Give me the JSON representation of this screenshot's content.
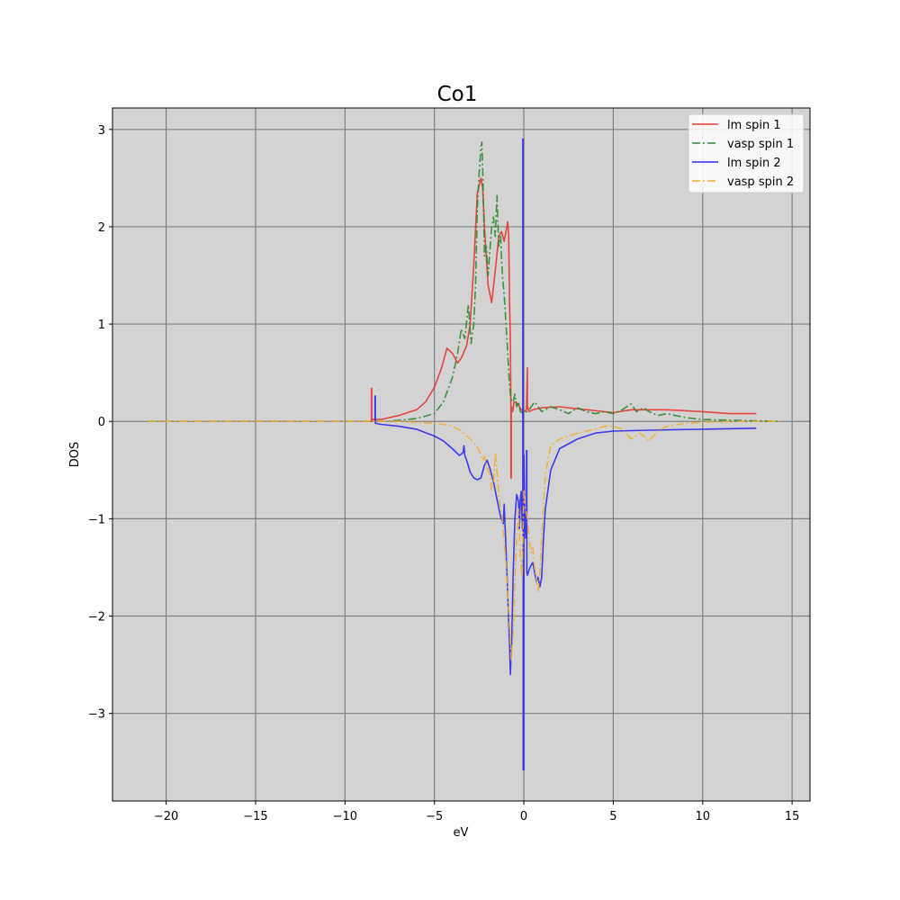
{
  "chart_data": {
    "type": "line",
    "title": "Co1",
    "xlabel": "eV",
    "ylabel": "DOS",
    "xlim": [
      -23,
      16
    ],
    "ylim": [
      -3.9,
      3.22
    ],
    "xticks": [
      -20,
      -15,
      -10,
      -5,
      0,
      5,
      10,
      15
    ],
    "xtick_labels": [
      "−20",
      "−15",
      "−10",
      "−5",
      "0",
      "5",
      "10",
      "15"
    ],
    "yticks": [
      -3,
      -2,
      -1,
      0,
      1,
      2,
      3
    ],
    "ytick_labels": [
      "−3",
      "−2",
      "−1",
      "0",
      "1",
      "2",
      "3"
    ],
    "grid": true,
    "background": "#d3d3d3",
    "grid_color": "#808080",
    "legend_position": "top-right",
    "series": [
      {
        "name": "lm spin 1",
        "color": "#e8352e",
        "linestyle": "solid",
        "x": [
          -8.6,
          -8.52,
          -8.52,
          -8.5,
          -8.5,
          -8.0,
          -7.0,
          -6.0,
          -5.5,
          -5.0,
          -4.6,
          -4.3,
          -4.0,
          -3.7,
          -3.5,
          -3.2,
          -3.0,
          -2.8,
          -2.6,
          -2.4,
          -2.3,
          -2.2,
          -2.0,
          -1.8,
          -1.6,
          -1.4,
          -1.25,
          -1.1,
          -1.0,
          -0.9,
          -0.85,
          -0.8,
          -0.75,
          -0.72,
          -0.72,
          -0.7,
          -0.7,
          -0.62,
          -0.55,
          -0.45,
          -0.3,
          -0.15,
          0.0,
          0.1,
          0.15,
          0.2,
          0.2,
          0.23,
          0.23,
          0.3,
          0.5,
          1.0,
          2.0,
          3.0,
          4.0,
          5.0,
          6.0,
          8.0,
          10.0,
          11.5,
          13.0
        ],
        "y": [
          0.0,
          0.0,
          0.34,
          0.34,
          0.02,
          0.02,
          0.06,
          0.12,
          0.2,
          0.35,
          0.55,
          0.75,
          0.7,
          0.6,
          0.65,
          0.78,
          1.0,
          1.6,
          2.35,
          2.5,
          2.4,
          2.0,
          1.4,
          1.22,
          1.55,
          1.9,
          1.95,
          1.85,
          1.95,
          2.05,
          1.9,
          1.2,
          0.85,
          0.1,
          -0.58,
          -0.58,
          0.15,
          0.1,
          0.2,
          0.2,
          0.17,
          0.12,
          0.1,
          0.11,
          0.13,
          0.55,
          0.15,
          0.15,
          0.12,
          0.1,
          0.12,
          0.14,
          0.15,
          0.13,
          0.11,
          0.09,
          0.12,
          0.12,
          0.1,
          0.08,
          0.08
        ]
      },
      {
        "name": "vasp spin 1",
        "color": "#2e8b2e",
        "linestyle": "dashdot",
        "x": [
          -21.0,
          -15.0,
          -10.0,
          -8.0,
          -7.0,
          -6.0,
          -5.0,
          -4.5,
          -4.0,
          -3.7,
          -3.5,
          -3.3,
          -3.1,
          -2.95,
          -2.8,
          -2.7,
          -2.6,
          -2.5,
          -2.4,
          -2.35,
          -2.3,
          -2.25,
          -2.2,
          -2.1,
          -2.0,
          -1.9,
          -1.8,
          -1.7,
          -1.6,
          -1.5,
          -1.4,
          -1.3,
          -1.2,
          -1.1,
          -1.0,
          -0.9,
          -0.8,
          -0.7,
          -0.6,
          -0.5,
          -0.4,
          -0.3,
          -0.2,
          0.0,
          0.3,
          0.6,
          1.0,
          1.5,
          2.0,
          2.5,
          3.0,
          3.5,
          4.0,
          4.5,
          5.0,
          5.5,
          6.0,
          6.3,
          6.7,
          7.0,
          7.5,
          8.0,
          9.0,
          10.0,
          12.0,
          14.3
        ],
        "y": [
          0.0,
          0.0,
          0.0,
          0.0,
          0.01,
          0.03,
          0.08,
          0.2,
          0.45,
          0.7,
          0.95,
          0.85,
          1.2,
          0.8,
          1.0,
          1.4,
          2.2,
          2.55,
          2.82,
          2.87,
          2.6,
          2.2,
          1.7,
          1.8,
          1.5,
          1.75,
          2.0,
          2.1,
          1.9,
          2.32,
          1.8,
          1.9,
          1.5,
          1.3,
          1.0,
          0.7,
          0.35,
          0.22,
          0.2,
          0.28,
          0.15,
          0.2,
          0.1,
          0.08,
          0.12,
          0.2,
          0.1,
          0.15,
          0.12,
          0.08,
          0.14,
          0.1,
          0.08,
          0.1,
          0.08,
          0.12,
          0.18,
          0.1,
          0.14,
          0.1,
          0.06,
          0.08,
          0.04,
          0.02,
          0.01,
          0.0
        ]
      },
      {
        "name": "lm spin 2",
        "color": "#2b2bef",
        "linestyle": "solid",
        "x": [
          -8.35,
          -8.32,
          -8.32,
          -8.3,
          -8.3,
          -8.0,
          -7.0,
          -6.0,
          -5.0,
          -4.5,
          -4.0,
          -3.6,
          -3.4,
          -3.35,
          -3.3,
          -3.2,
          -3.0,
          -2.8,
          -2.6,
          -2.4,
          -2.2,
          -2.05,
          -1.9,
          -1.7,
          -1.5,
          -1.3,
          -1.15,
          -1.1,
          -1.0,
          -0.9,
          -0.8,
          -0.75,
          -0.72,
          -0.68,
          -0.6,
          -0.5,
          -0.4,
          -0.3,
          -0.25,
          -0.2,
          -0.15,
          -0.1,
          -0.08,
          -0.06,
          -0.06,
          -0.04,
          -0.04,
          0.0,
          0.0,
          0.05,
          0.1,
          0.15,
          0.15,
          0.17,
          0.17,
          0.2,
          0.3,
          0.4,
          0.5,
          0.6,
          0.7,
          0.8,
          0.9,
          1.0,
          1.1,
          1.2,
          1.5,
          2.0,
          3.0,
          4.0,
          5.0,
          7.0,
          10.0,
          13.0
        ],
        "y": [
          0.0,
          0.0,
          0.26,
          0.26,
          -0.02,
          -0.03,
          -0.05,
          -0.08,
          -0.15,
          -0.2,
          -0.28,
          -0.35,
          -0.32,
          -0.25,
          -0.35,
          -0.4,
          -0.52,
          -0.58,
          -0.6,
          -0.58,
          -0.45,
          -0.4,
          -0.48,
          -0.62,
          -0.8,
          -0.98,
          -1.05,
          -0.85,
          -1.3,
          -1.8,
          -2.3,
          -2.6,
          -2.45,
          -2.3,
          -1.6,
          -1.0,
          -0.75,
          -0.82,
          -1.1,
          -0.8,
          -0.72,
          -1.0,
          -1.1,
          -1.1,
          2.9,
          2.9,
          -3.58,
          -3.58,
          -0.35,
          -0.9,
          -1.2,
          -0.9,
          -0.3,
          -0.3,
          -1.55,
          -1.58,
          -1.52,
          -1.48,
          -1.45,
          -1.55,
          -1.65,
          -1.6,
          -1.7,
          -1.6,
          -1.2,
          -0.9,
          -0.5,
          -0.28,
          -0.18,
          -0.12,
          -0.1,
          -0.09,
          -0.08,
          -0.07
        ]
      },
      {
        "name": "vasp spin 2",
        "color": "#f5ad2e",
        "linestyle": "dashdot",
        "x": [
          -21.0,
          -15.0,
          -10.0,
          -8.0,
          -7.0,
          -6.0,
          -5.0,
          -4.5,
          -4.0,
          -3.5,
          -3.0,
          -2.7,
          -2.5,
          -2.3,
          -2.2,
          -2.1,
          -2.0,
          -1.9,
          -1.8,
          -1.7,
          -1.6,
          -1.5,
          -1.4,
          -1.3,
          -1.2,
          -1.1,
          -1.0,
          -0.9,
          -0.8,
          -0.7,
          -0.6,
          -0.5,
          -0.4,
          -0.3,
          -0.2,
          -0.1,
          0.0,
          0.1,
          0.2,
          0.3,
          0.4,
          0.5,
          0.6,
          0.7,
          0.8,
          0.9,
          1.0,
          1.2,
          1.5,
          2.0,
          2.5,
          3.0,
          3.5,
          4.0,
          4.5,
          5.0,
          5.5,
          6.0,
          6.5,
          7.0,
          7.5,
          8.0,
          9.0,
          10.0,
          12.0,
          14.3
        ],
        "y": [
          0.0,
          0.0,
          0.0,
          0.0,
          0.0,
          -0.01,
          -0.02,
          -0.03,
          -0.05,
          -0.1,
          -0.18,
          -0.24,
          -0.3,
          -0.4,
          -0.36,
          -0.45,
          -0.5,
          -0.55,
          -0.7,
          -0.65,
          -0.32,
          -0.5,
          -0.75,
          -0.9,
          -1.0,
          -1.25,
          -1.45,
          -1.8,
          -2.1,
          -2.45,
          -2.2,
          -1.6,
          -1.2,
          -0.9,
          -1.4,
          -1.6,
          -0.7,
          -0.9,
          -1.0,
          -1.2,
          -1.35,
          -1.3,
          -1.5,
          -1.62,
          -1.75,
          -1.55,
          -1.2,
          -0.55,
          -0.25,
          -0.18,
          -0.15,
          -0.12,
          -0.1,
          -0.08,
          -0.05,
          -0.05,
          -0.08,
          -0.18,
          -0.12,
          -0.2,
          -0.1,
          -0.05,
          -0.02,
          -0.01,
          0.0,
          0.0
        ]
      }
    ]
  }
}
